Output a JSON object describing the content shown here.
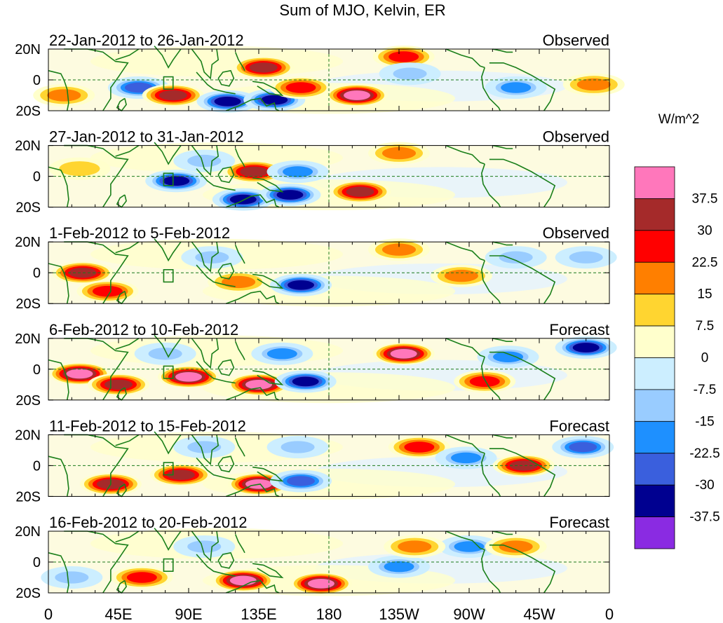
{
  "chart_data": {
    "type": "heatmap",
    "title": "Sum of MJO, Kelvin, ER",
    "units": "W/m^2",
    "x_ticks": [
      "0",
      "45E",
      "90E",
      "135E",
      "180",
      "135W",
      "90W",
      "45W",
      "0"
    ],
    "y_ticks": [
      "20N",
      "0",
      "20S"
    ],
    "xlim": [
      0,
      360
    ],
    "ylim": [
      -20,
      20
    ],
    "colorbar": {
      "labels": [
        "37.5",
        "30",
        "22.5",
        "15",
        "7.5",
        "0",
        "-7.5",
        "-15",
        "-22.5",
        "-30",
        "-37.5"
      ],
      "colors": [
        "#ff77bb",
        "#a52a2a",
        "#ff0000",
        "#ff7f00",
        "#ffd530",
        "#ffffcc",
        "#cceeff",
        "#99ccff",
        "#1e90ff",
        "#3a5fdd",
        "#000090",
        "#8a2be2"
      ]
    },
    "panels": [
      {
        "period": "22-Jan-2012 to 26-Jan-2012",
        "status": "Observed",
        "anomalies": [
          {
            "lon": 58,
            "lat": -5,
            "value": -30
          },
          {
            "lon": 80,
            "lat": -10,
            "value": 30
          },
          {
            "lon": 115,
            "lat": -14,
            "value": -37.5
          },
          {
            "lon": 145,
            "lat": -13,
            "value": -37.5
          },
          {
            "lon": 138,
            "lat": 8,
            "value": 30
          },
          {
            "lon": 162,
            "lat": -5,
            "value": 22.5
          },
          {
            "lon": 198,
            "lat": -10,
            "value": 37.5
          },
          {
            "lon": 228,
            "lat": 15,
            "value": 22.5
          },
          {
            "lon": 232,
            "lat": 4,
            "value": -15
          },
          {
            "lon": 300,
            "lat": -5,
            "value": -22.5
          },
          {
            "lon": 350,
            "lat": -3,
            "value": 15
          },
          {
            "lon": 10,
            "lat": -10,
            "value": 15
          }
        ]
      },
      {
        "period": "27-Jan-2012 to 31-Jan-2012",
        "status": "Observed",
        "anomalies": [
          {
            "lon": 82,
            "lat": -3,
            "value": -37.5
          },
          {
            "lon": 125,
            "lat": -15,
            "value": -37.5
          },
          {
            "lon": 155,
            "lat": -12,
            "value": -37.5
          },
          {
            "lon": 132,
            "lat": 3,
            "value": 30
          },
          {
            "lon": 160,
            "lat": 3,
            "value": -22.5
          },
          {
            "lon": 200,
            "lat": -10,
            "value": 30
          },
          {
            "lon": 100,
            "lat": 10,
            "value": -15
          },
          {
            "lon": 225,
            "lat": 15,
            "value": 15
          },
          {
            "lon": 20,
            "lat": 5,
            "value": 7.5
          }
        ]
      },
      {
        "period": "1-Feb-2012 to 5-Feb-2012",
        "status": "Observed",
        "anomalies": [
          {
            "lon": 22,
            "lat": 0,
            "value": 30
          },
          {
            "lon": 38,
            "lat": -12,
            "value": 22.5
          },
          {
            "lon": 162,
            "lat": -8,
            "value": -37.5
          },
          {
            "lon": 105,
            "lat": 10,
            "value": -15
          },
          {
            "lon": 122,
            "lat": -6,
            "value": 15
          },
          {
            "lon": 225,
            "lat": 15,
            "value": 15
          },
          {
            "lon": 265,
            "lat": -2,
            "value": 15
          },
          {
            "lon": 300,
            "lat": 10,
            "value": -15
          },
          {
            "lon": 345,
            "lat": 10,
            "value": -15
          }
        ]
      },
      {
        "period": "6-Feb-2012 to 10-Feb-2012",
        "status": "Forecast",
        "anomalies": [
          {
            "lon": 20,
            "lat": -3,
            "value": 37.5
          },
          {
            "lon": 45,
            "lat": -10,
            "value": 30
          },
          {
            "lon": 90,
            "lat": -5,
            "value": 37.5
          },
          {
            "lon": 135,
            "lat": -10,
            "value": 37.5
          },
          {
            "lon": 165,
            "lat": -8,
            "value": -37.5
          },
          {
            "lon": 228,
            "lat": 10,
            "value": 37.5
          },
          {
            "lon": 150,
            "lat": 10,
            "value": -22.5
          },
          {
            "lon": 280,
            "lat": -8,
            "value": 22.5
          },
          {
            "lon": 295,
            "lat": 8,
            "value": -22.5
          },
          {
            "lon": 345,
            "lat": 14,
            "value": -37.5
          },
          {
            "lon": 75,
            "lat": 10,
            "value": -15
          }
        ]
      },
      {
        "period": "11-Feb-2012 to 15-Feb-2012",
        "status": "Forecast",
        "anomalies": [
          {
            "lon": 40,
            "lat": -12,
            "value": 30
          },
          {
            "lon": 85,
            "lat": -6,
            "value": 30
          },
          {
            "lon": 135,
            "lat": -12,
            "value": 37.5
          },
          {
            "lon": 162,
            "lat": -10,
            "value": -30
          },
          {
            "lon": 238,
            "lat": 12,
            "value": 22.5
          },
          {
            "lon": 268,
            "lat": 5,
            "value": -22.5
          },
          {
            "lon": 305,
            "lat": 0,
            "value": 30
          },
          {
            "lon": 343,
            "lat": 12,
            "value": -30
          },
          {
            "lon": 100,
            "lat": 12,
            "value": -15
          },
          {
            "lon": 160,
            "lat": 12,
            "value": -15
          }
        ]
      },
      {
        "period": "16-Feb-2012 to 20-Feb-2012",
        "status": "Forecast",
        "anomalies": [
          {
            "lon": 60,
            "lat": -10,
            "value": 22.5
          },
          {
            "lon": 125,
            "lat": -12,
            "value": 37.5
          },
          {
            "lon": 175,
            "lat": -14,
            "value": 37.5
          },
          {
            "lon": 100,
            "lat": 10,
            "value": -15
          },
          {
            "lon": 225,
            "lat": -3,
            "value": -22.5
          },
          {
            "lon": 270,
            "lat": 10,
            "value": -22.5
          },
          {
            "lon": 300,
            "lat": 10,
            "value": 15
          },
          {
            "lon": 235,
            "lat": 10,
            "value": 15
          },
          {
            "lon": 15,
            "lat": -10,
            "value": -15
          }
        ]
      }
    ]
  }
}
